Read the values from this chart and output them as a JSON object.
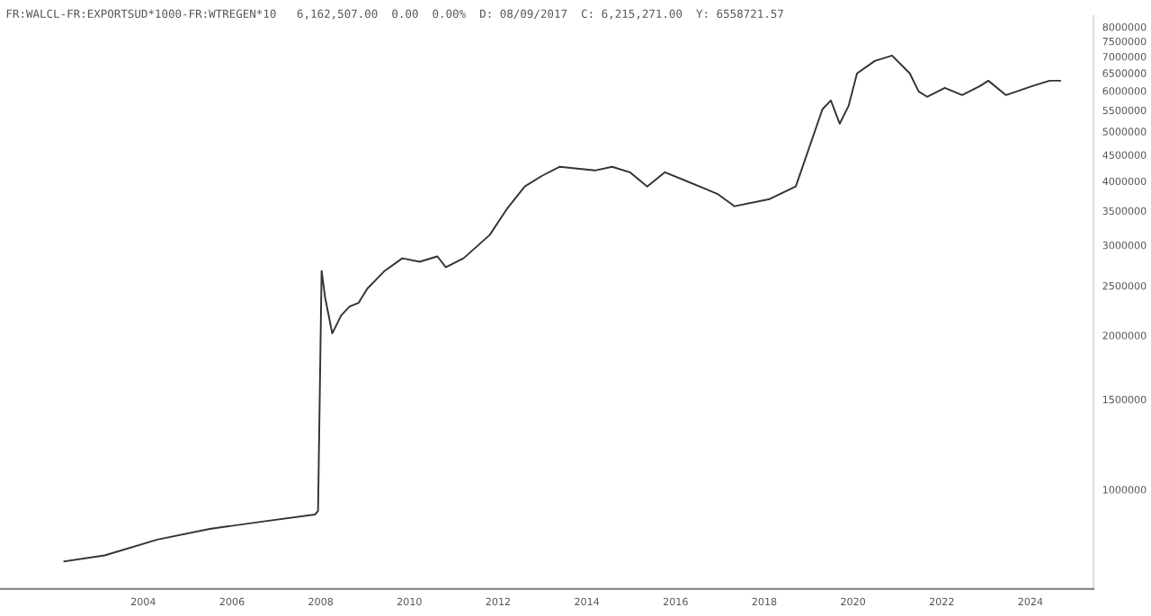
{
  "chart_data": {
    "type": "line",
    "title": "FR:WALCL-FR:EXPORTSUD*1000-FR:WTREGEN*10   6,162,507.00  0.00  0.00%  D: 08/09/2017  C: 6,215,271.00  Y: 6558721.57",
    "series": [
      {
        "color": "#333333",
        "x": [
          2002.22,
          2003.13,
          2004.32,
          2005.5,
          2006.68,
          2007.87,
          2007.94,
          2008.02,
          2008.1,
          2008.26,
          2008.46,
          2008.65,
          2008.85,
          2009.05,
          2009.44,
          2009.84,
          2010.23,
          2010.63,
          2010.82,
          2011.22,
          2011.81,
          2012.21,
          2012.6,
          2012.99,
          2013.39,
          2014.18,
          2014.57,
          2014.97,
          2015.36,
          2015.76,
          2016.54,
          2016.94,
          2017.33,
          2018.12,
          2018.71,
          2019.31,
          2019.5,
          2019.7,
          2019.9,
          2020.09,
          2020.49,
          2020.88,
          2021.28,
          2021.48,
          2021.67,
          2022.07,
          2022.46,
          2022.86,
          2023.05,
          2023.45,
          2024.04,
          2024.43,
          2024.67
        ],
        "values": [
          724000,
          744000,
          799000,
          838000,
          866000,
          894000,
          908000,
          2672000,
          2369000,
          2017000,
          2186000,
          2276000,
          2313000,
          2467000,
          2672000,
          2828000,
          2784000,
          2852000,
          2716000,
          2828000,
          3141000,
          3542000,
          3905000,
          4097000,
          4266000,
          4196000,
          4266000,
          4162000,
          3905000,
          4162000,
          3905000,
          3779000,
          3573000,
          3690000,
          3905000,
          5522000,
          5748000,
          5177000,
          5610000,
          6489000,
          6863000,
          7033000,
          6489000,
          5985000,
          5843000,
          6083000,
          5888000,
          6132000,
          6281000,
          5888000,
          6132000,
          6281000,
          6281000
        ]
      }
    ],
    "log": "y",
    "xlim": [
      2000.77,
      2025.42
    ],
    "ylim": [
      640000,
      8400000
    ],
    "xticks": [
      2004,
      2006,
      2008,
      2010,
      2012,
      2014,
      2016,
      2018,
      2020,
      2022,
      2024
    ],
    "yticks": [
      1000000,
      1500000,
      2000000,
      2500000,
      3000000,
      3500000,
      4000000,
      4500000,
      5000000,
      5500000,
      6000000,
      6500000,
      7000000,
      7500000,
      8000000
    ],
    "grid": false,
    "legend": false,
    "marker": "none",
    "line_style": "solid"
  }
}
